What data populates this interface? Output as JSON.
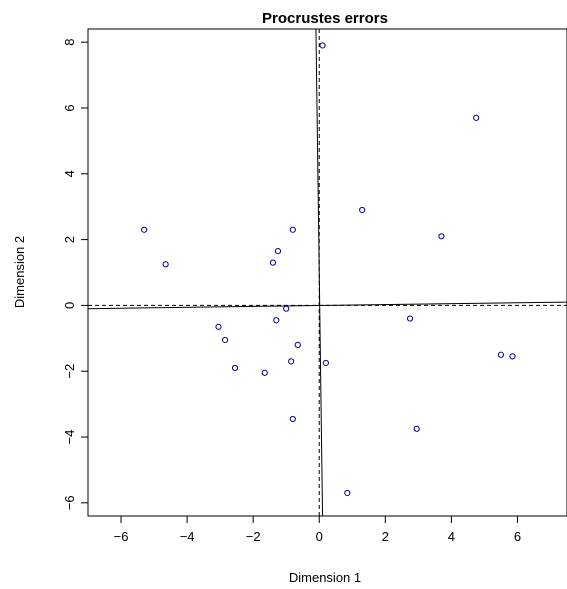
{
  "chart_data": {
    "type": "scatter",
    "title": "Procrustes errors",
    "xlabel": "Dimension 1",
    "ylabel": "Dimension 2",
    "xlim": [
      -7,
      7.5
    ],
    "ylim": [
      -6.4,
      8.4
    ],
    "xticks": [
      -6,
      -4,
      -2,
      0,
      2,
      4,
      6
    ],
    "yticks": [
      -6,
      -4,
      -2,
      0,
      2,
      4,
      6,
      8
    ],
    "xtick_labels": [
      "−6",
      "−4",
      "−2",
      "0",
      "2",
      "4",
      "6"
    ],
    "ytick_labels": [
      "−6",
      "−4",
      "−2",
      "0",
      "2",
      "4",
      "6",
      "8"
    ],
    "grid": false,
    "point_color": "#00008b",
    "points": [
      {
        "x": 0.1,
        "y": 7.9
      },
      {
        "x": 4.75,
        "y": 5.7
      },
      {
        "x": 1.3,
        "y": 2.9
      },
      {
        "x": 3.7,
        "y": 2.1
      },
      {
        "x": -5.3,
        "y": 2.3
      },
      {
        "x": -4.65,
        "y": 1.25
      },
      {
        "x": -0.8,
        "y": 2.3
      },
      {
        "x": -1.25,
        "y": 1.65
      },
      {
        "x": -1.4,
        "y": 1.3
      },
      {
        "x": -1.0,
        "y": -0.1
      },
      {
        "x": -1.3,
        "y": -0.45
      },
      {
        "x": -3.05,
        "y": -0.65
      },
      {
        "x": -2.85,
        "y": -1.05
      },
      {
        "x": -0.65,
        "y": -1.2
      },
      {
        "x": -0.85,
        "y": -1.7
      },
      {
        "x": -2.55,
        "y": -1.9
      },
      {
        "x": -1.65,
        "y": -2.05
      },
      {
        "x": 0.2,
        "y": -1.75
      },
      {
        "x": 2.75,
        "y": -0.4
      },
      {
        "x": 5.5,
        "y": -1.5
      },
      {
        "x": 5.85,
        "y": -1.55
      },
      {
        "x": -0.8,
        "y": -3.45
      },
      {
        "x": 2.95,
        "y": -3.75
      },
      {
        "x": 0.85,
        "y": -5.7
      }
    ],
    "rotated_axes": {
      "solid": {
        "horizontal": [
          [
            -7,
            -0.1
          ],
          [
            7.5,
            0.1
          ]
        ],
        "vertical": [
          [
            -0.1,
            8.4
          ],
          [
            0.1,
            -6.4
          ]
        ]
      },
      "dashed": {
        "horizontal": [
          [
            -7,
            0.0
          ],
          [
            7.5,
            0.0
          ]
        ],
        "vertical": [
          [
            0.0,
            8.4
          ],
          [
            0.0,
            -6.4
          ]
        ]
      }
    }
  }
}
